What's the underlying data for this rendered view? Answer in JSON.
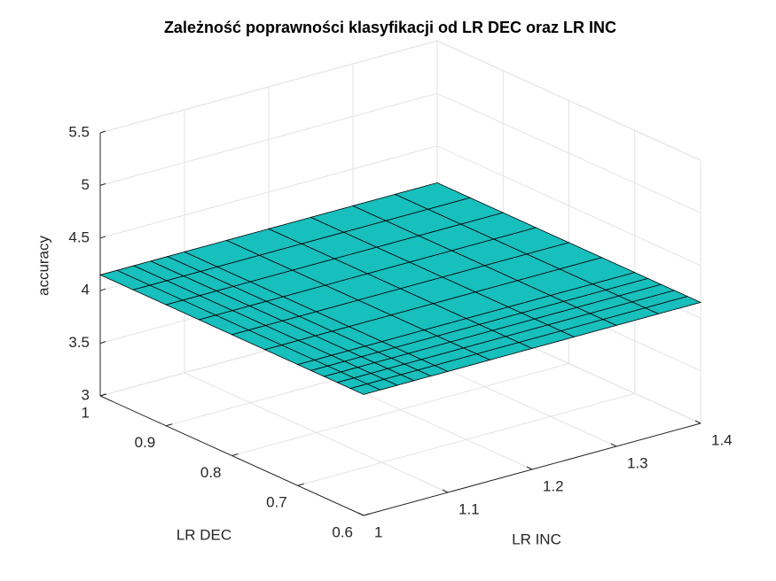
{
  "chart_data": {
    "type": "surface",
    "title": "Zależność poprawności klasyfikacji od LR DEC oraz LR INC",
    "xlabel": "LR INC",
    "ylabel": "LR DEC",
    "zlabel": "accuracy",
    "x": [
      1,
      1.02,
      1.04,
      1.06,
      1.08,
      1.1,
      1.15,
      1.2,
      1.25,
      1.3,
      1.35,
      1.4
    ],
    "y": [
      0.6,
      0.62,
      0.64,
      0.66,
      0.68,
      0.7,
      0.75,
      0.8,
      0.85,
      0.9,
      0.95,
      1
    ],
    "z": [
      [
        4.15,
        4.15,
        4.15,
        4.15,
        4.15,
        4.15,
        4.15,
        4.15,
        4.15,
        4.15,
        4.15,
        4.15
      ],
      [
        4.15,
        4.15,
        4.15,
        4.15,
        4.15,
        4.15,
        4.15,
        4.15,
        4.15,
        4.15,
        4.15,
        4.15
      ],
      [
        4.15,
        4.15,
        4.15,
        4.15,
        4.15,
        4.15,
        4.15,
        4.15,
        4.15,
        4.15,
        4.15,
        4.15
      ],
      [
        4.15,
        4.15,
        4.15,
        4.15,
        4.15,
        4.15,
        4.15,
        4.15,
        4.15,
        4.15,
        4.15,
        4.15
      ],
      [
        4.15,
        4.15,
        4.15,
        4.15,
        4.15,
        4.15,
        4.15,
        4.15,
        4.15,
        4.15,
        4.15,
        4.15
      ],
      [
        4.15,
        4.15,
        4.15,
        4.15,
        4.15,
        4.15,
        4.15,
        4.15,
        4.15,
        4.15,
        4.15,
        4.15
      ],
      [
        4.15,
        4.15,
        4.15,
        4.15,
        4.15,
        4.15,
        4.15,
        4.15,
        4.15,
        4.15,
        4.15,
        4.15
      ],
      [
        4.15,
        4.15,
        4.15,
        4.15,
        4.15,
        4.15,
        4.15,
        4.15,
        4.15,
        4.15,
        4.15,
        4.15
      ],
      [
        4.15,
        4.15,
        4.15,
        4.15,
        4.15,
        4.15,
        4.15,
        4.15,
        4.15,
        4.15,
        4.15,
        4.15
      ],
      [
        4.15,
        4.15,
        4.15,
        4.15,
        4.15,
        4.15,
        4.15,
        4.15,
        4.15,
        4.15,
        4.15,
        4.15
      ],
      [
        4.15,
        4.15,
        4.15,
        4.15,
        4.15,
        4.15,
        4.15,
        4.15,
        4.15,
        4.15,
        4.15,
        4.15
      ],
      [
        4.15,
        4.15,
        4.15,
        4.15,
        4.15,
        4.15,
        4.15,
        4.15,
        4.15,
        4.15,
        4.15,
        4.15
      ]
    ],
    "xlim": [
      1,
      1.4
    ],
    "ylim": [
      0.6,
      1
    ],
    "zlim": [
      3,
      5.5
    ],
    "xticks": [
      1,
      1.1,
      1.2,
      1.3,
      1.4
    ],
    "yticks": [
      0.6,
      0.7,
      0.8,
      0.9,
      1
    ],
    "zticks": [
      3,
      3.5,
      4,
      4.5,
      5,
      5.5
    ],
    "color": "#17bfbd",
    "grid": true
  }
}
